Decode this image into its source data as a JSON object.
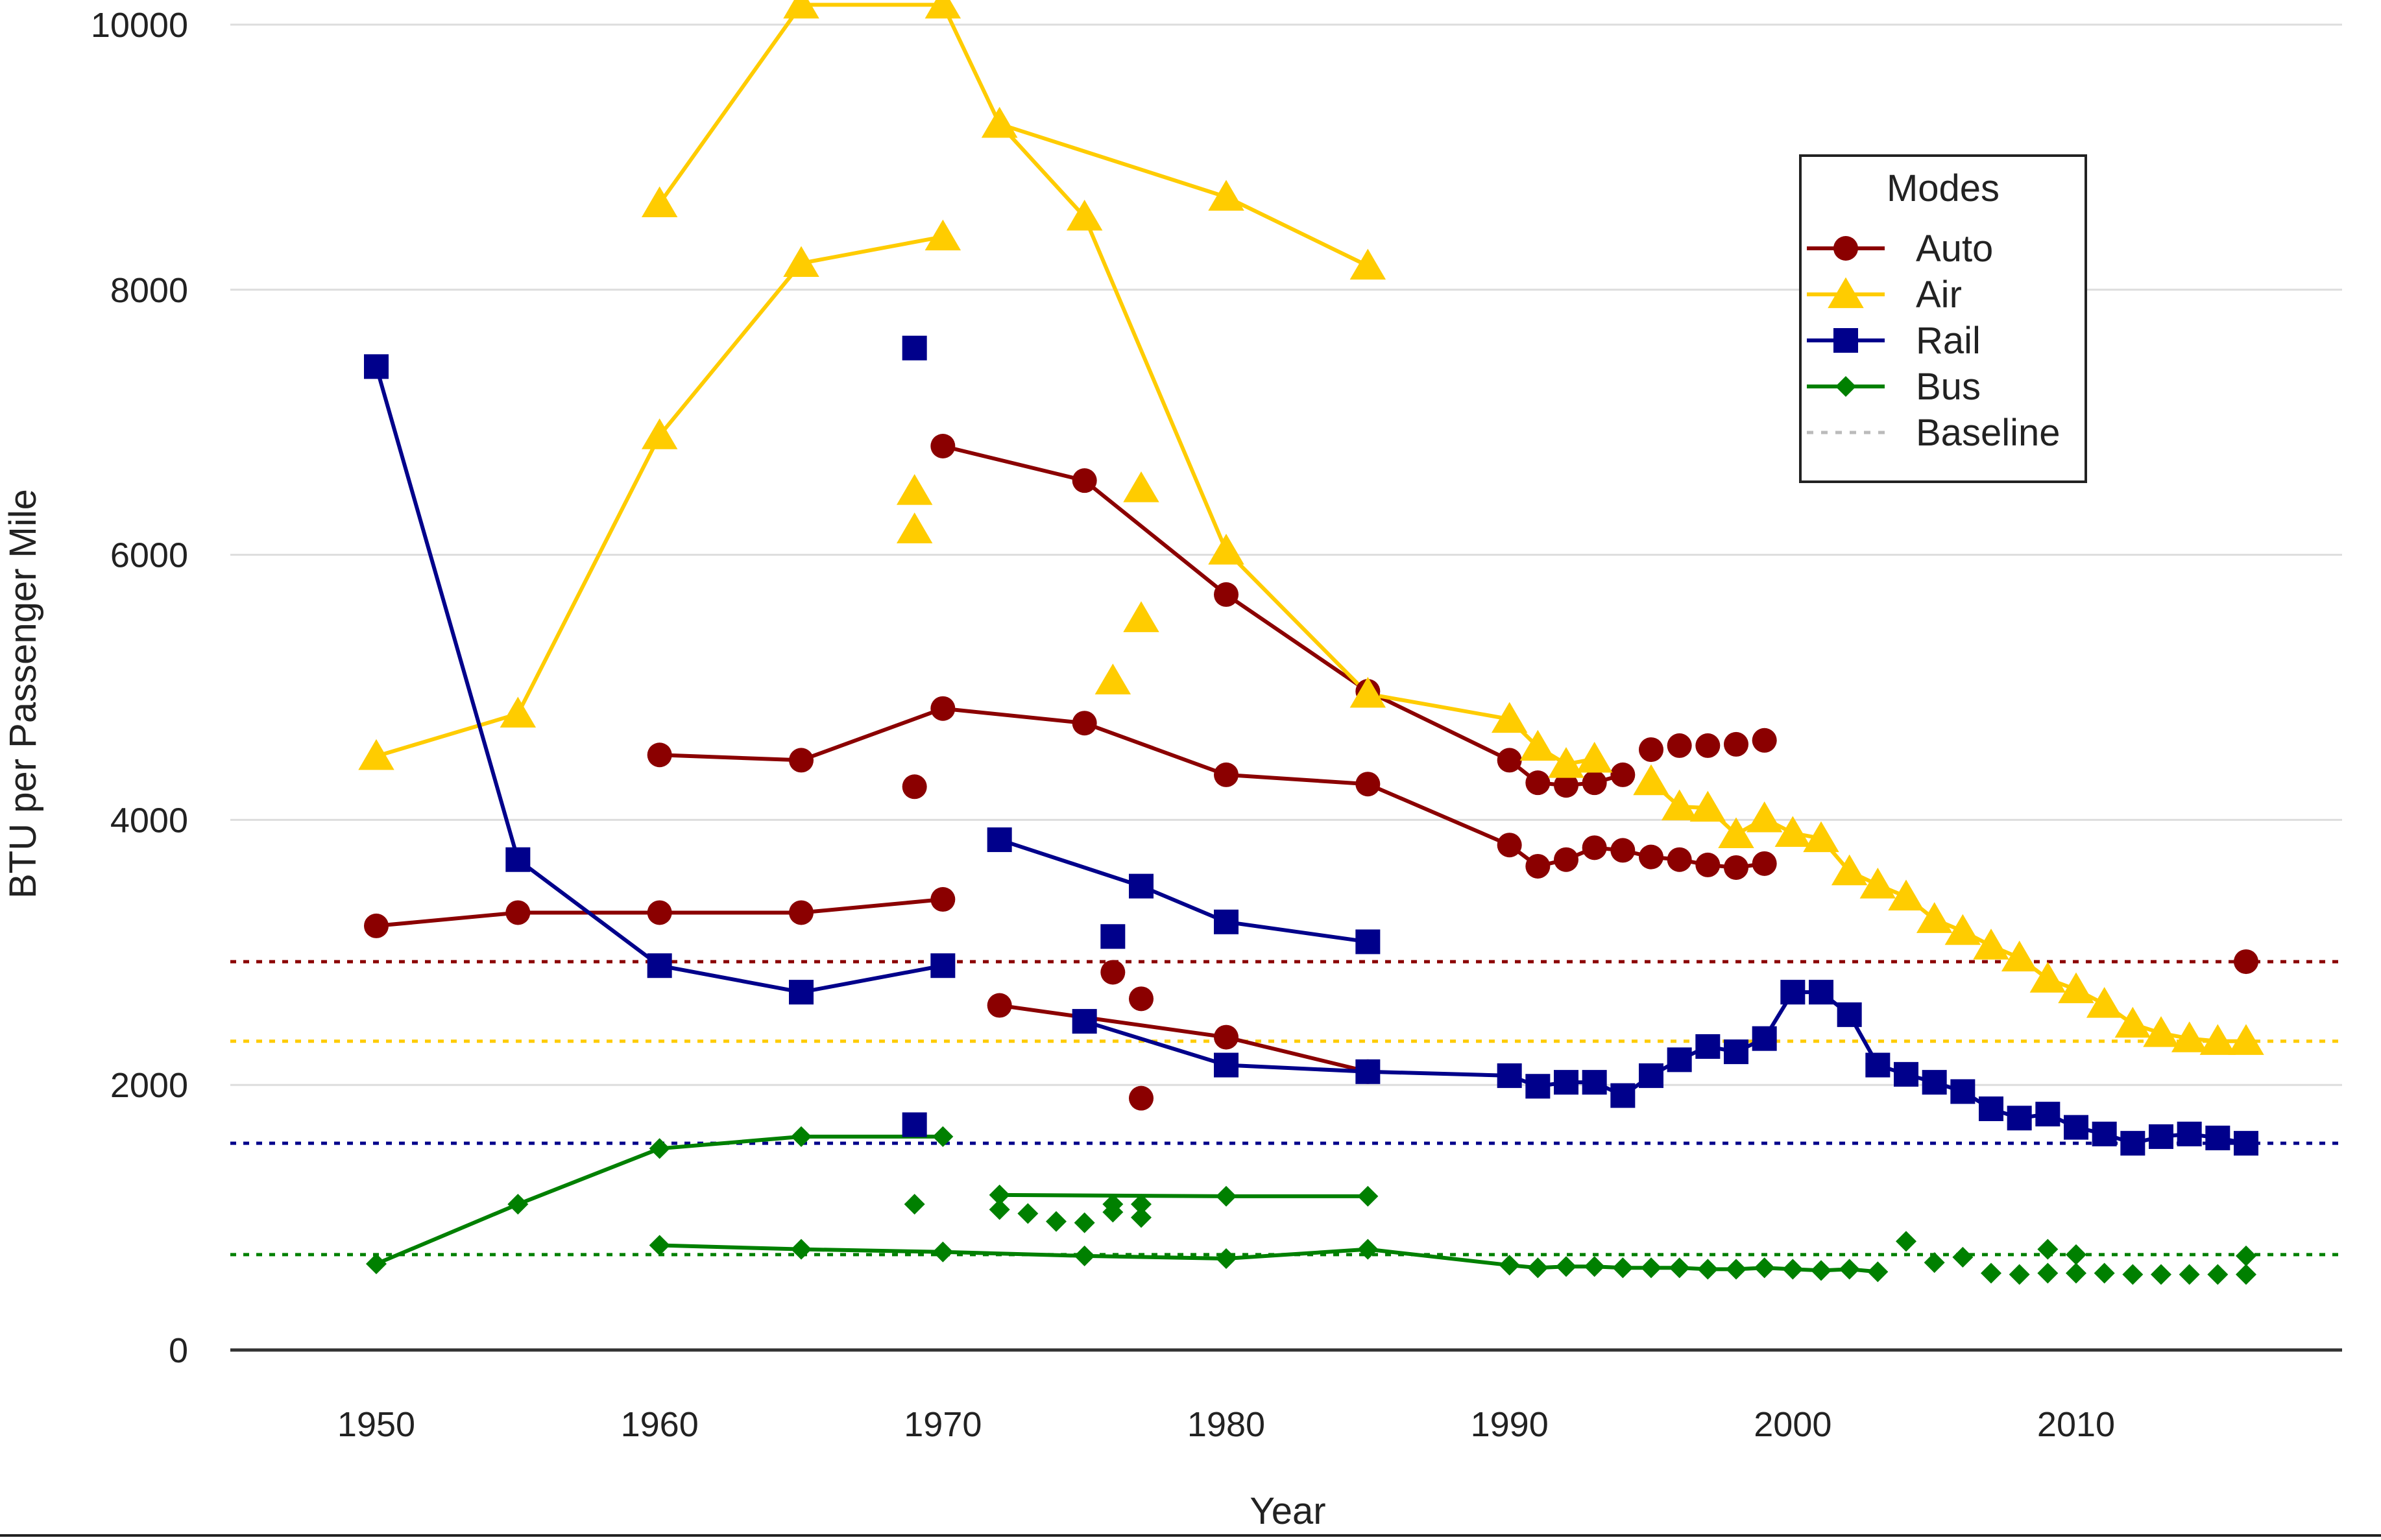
{
  "chart_data": {
    "type": "line",
    "title": "",
    "xlabel": "Year",
    "ylabel": "BTU per Passenger Mile",
    "xlim": [
      1945,
      2019
    ],
    "ylim": [
      0,
      10000
    ],
    "x_ticks": [
      1950,
      1960,
      1970,
      1980,
      1990,
      2000,
      2010
    ],
    "y_ticks": [
      0,
      2000,
      4000,
      6000,
      8000,
      10000
    ],
    "grid": "horizontal",
    "legend": {
      "title": "Modes",
      "placement": "top-right",
      "entries": [
        "Auto",
        "Air",
        "Rail",
        "Bus",
        "Baseline"
      ]
    },
    "colors": {
      "Auto": "#8b0000",
      "Air": "#ffcc00",
      "Rail": "#00008b",
      "Bus": "#008000",
      "Baseline": "#bbbbbb",
      "grid": "#dddddd",
      "axis": "#333333"
    },
    "baselines": [
      {
        "mode": "Auto",
        "value": 2930
      },
      {
        "mode": "Air",
        "value": 2330
      },
      {
        "mode": "Rail",
        "value": 1560
      },
      {
        "mode": "Bus",
        "value": 720
      }
    ],
    "series": [
      {
        "name": "Auto",
        "marker": "circle",
        "lines": [
          [
            [
              1950,
              3200
            ],
            [
              1955,
              3300
            ],
            [
              1960,
              3300
            ],
            [
              1965,
              3300
            ],
            [
              1970,
              3400
            ]
          ],
          [
            [
              1960,
              4490
            ],
            [
              1965,
              4450
            ],
            [
              1970,
              4840
            ],
            [
              1975,
              4730
            ],
            [
              1980,
              4340
            ],
            [
              1985,
              4270
            ],
            [
              1990,
              3810
            ],
            [
              1991,
              3650
            ],
            [
              1992,
              3700
            ],
            [
              1993,
              3790
            ],
            [
              1994,
              3770
            ],
            [
              1995,
              3720
            ],
            [
              1996,
              3700
            ],
            [
              1997,
              3660
            ],
            [
              1998,
              3640
            ],
            [
              1999,
              3670
            ]
          ],
          [
            [
              1970,
              6820
            ],
            [
              1975,
              6560
            ],
            [
              1980,
              5700
            ],
            [
              1985,
              4970
            ],
            [
              1990,
              4450
            ],
            [
              1991,
              4280
            ],
            [
              1992,
              4260
            ],
            [
              1993,
              4280
            ],
            [
              1994,
              4340
            ]
          ],
          [
            [
              1972,
              2600
            ],
            [
              1980,
              2360
            ],
            [
              1985,
              2100
            ]
          ]
        ],
        "points": [
          [
            1969,
            4250
          ],
          [
            1976,
            2850
          ],
          [
            1977,
            2650
          ],
          [
            1977,
            1900
          ],
          [
            1995,
            4530
          ],
          [
            1996,
            4560
          ],
          [
            1997,
            4560
          ],
          [
            1998,
            4570
          ],
          [
            1999,
            4600
          ],
          [
            2016,
            2930
          ]
        ]
      },
      {
        "name": "Air",
        "marker": "triangle",
        "lines": [
          [
            [
              1950,
              4480
            ],
            [
              1955,
              4800
            ],
            [
              1960,
              6900
            ],
            [
              1965,
              8200
            ],
            [
              1970,
              8400
            ]
          ],
          [
            [
              1960,
              8650
            ],
            [
              1965,
              10150
            ],
            [
              1970,
              10150
            ],
            [
              1972,
              9250
            ],
            [
              1975,
              8550
            ],
            [
              1980,
              6030
            ],
            [
              1985,
              4950
            ],
            [
              1990,
              4760
            ],
            [
              1991,
              4550
            ],
            [
              1992,
              4420
            ],
            [
              1993,
              4460
            ]
          ],
          [
            [
              1972,
              9250
            ],
            [
              1980,
              8700
            ],
            [
              1985,
              8180
            ]
          ],
          [
            [
              1995,
              4290
            ],
            [
              1996,
              4100
            ],
            [
              1997,
              4090
            ],
            [
              1998,
              3890
            ],
            [
              1999,
              4010
            ],
            [
              2000,
              3900
            ],
            [
              2001,
              3860
            ],
            [
              2002,
              3610
            ],
            [
              2003,
              3510
            ],
            [
              2004,
              3420
            ],
            [
              2005,
              3250
            ],
            [
              2006,
              3160
            ],
            [
              2007,
              3050
            ],
            [
              2008,
              2960
            ],
            [
              2009,
              2800
            ],
            [
              2010,
              2720
            ],
            [
              2011,
              2610
            ],
            [
              2012,
              2460
            ],
            [
              2013,
              2390
            ],
            [
              2014,
              2350
            ],
            [
              2015,
              2330
            ],
            [
              2016,
              2330
            ]
          ]
        ],
        "points": [
          [
            1969,
            6480
          ],
          [
            1969,
            6190
          ],
          [
            1976,
            5050
          ],
          [
            1977,
            5520
          ],
          [
            1977,
            6500
          ]
        ]
      },
      {
        "name": "Rail",
        "marker": "square",
        "lines": [
          [
            [
              1950,
              7420
            ],
            [
              1955,
              3700
            ],
            [
              1960,
              2900
            ],
            [
              1965,
              2700
            ],
            [
              1970,
              2900
            ]
          ],
          [
            [
              1972,
              3850
            ],
            [
              1977,
              3500
            ],
            [
              1980,
              3230
            ],
            [
              1985,
              3080
            ]
          ],
          [
            [
              1975,
              2480
            ],
            [
              1980,
              2150
            ],
            [
              1985,
              2100
            ],
            [
              1990,
              2070
            ],
            [
              1991,
              1990
            ],
            [
              1992,
              2020
            ],
            [
              1993,
              2020
            ],
            [
              1994,
              1920
            ],
            [
              1995,
              2070
            ],
            [
              1996,
              2190
            ],
            [
              1997,
              2290
            ],
            [
              1998,
              2250
            ],
            [
              1999,
              2350
            ],
            [
              2000,
              2700
            ],
            [
              2001,
              2700
            ],
            [
              2002,
              2530
            ],
            [
              2003,
              2150
            ],
            [
              2004,
              2080
            ],
            [
              2005,
              2020
            ],
            [
              2006,
              1950
            ],
            [
              2007,
              1820
            ],
            [
              2008,
              1750
            ],
            [
              2009,
              1780
            ],
            [
              2010,
              1680
            ],
            [
              2011,
              1630
            ],
            [
              2012,
              1560
            ],
            [
              2013,
              1610
            ],
            [
              2014,
              1630
            ],
            [
              2015,
              1600
            ],
            [
              2016,
              1560
            ]
          ]
        ],
        "points": [
          [
            1969,
            7560
          ],
          [
            1969,
            1700
          ],
          [
            1976,
            3120
          ]
        ]
      },
      {
        "name": "Bus",
        "marker": "diamond",
        "lines": [
          [
            [
              1950,
              650
            ],
            [
              1955,
              1100
            ],
            [
              1960,
              1520
            ],
            [
              1965,
              1610
            ],
            [
              1970,
              1610
            ]
          ],
          [
            [
              1960,
              790
            ],
            [
              1965,
              760
            ],
            [
              1970,
              740
            ],
            [
              1975,
              710
            ],
            [
              1980,
              690
            ],
            [
              1985,
              760
            ],
            [
              1990,
              640
            ],
            [
              1991,
              620
            ],
            [
              1992,
              630
            ],
            [
              1993,
              630
            ],
            [
              1994,
              620
            ],
            [
              1995,
              620
            ],
            [
              1996,
              620
            ],
            [
              1997,
              610
            ],
            [
              1998,
              610
            ],
            [
              1999,
              620
            ],
            [
              2000,
              610
            ],
            [
              2001,
              600
            ],
            [
              2002,
              610
            ],
            [
              2003,
              590
            ]
          ],
          [
            [
              1972,
              1170
            ],
            [
              1980,
              1160
            ],
            [
              1985,
              1160
            ]
          ]
        ],
        "points": [
          [
            1969,
            1100
          ],
          [
            1972,
            1060
          ],
          [
            1973,
            1030
          ],
          [
            1974,
            970
          ],
          [
            1975,
            960
          ],
          [
            1976,
            1040
          ],
          [
            1976,
            1100
          ],
          [
            1977,
            1000
          ],
          [
            1977,
            1100
          ],
          [
            2004,
            820
          ],
          [
            2005,
            660
          ],
          [
            2006,
            700
          ],
          [
            2007,
            580
          ],
          [
            2008,
            570
          ],
          [
            2009,
            580
          ],
          [
            2009,
            760
          ],
          [
            2010,
            580
          ],
          [
            2010,
            720
          ],
          [
            2011,
            580
          ],
          [
            2012,
            570
          ],
          [
            2013,
            570
          ],
          [
            2014,
            570
          ],
          [
            2015,
            570
          ],
          [
            2016,
            570
          ],
          [
            2016,
            710
          ]
        ]
      }
    ]
  }
}
